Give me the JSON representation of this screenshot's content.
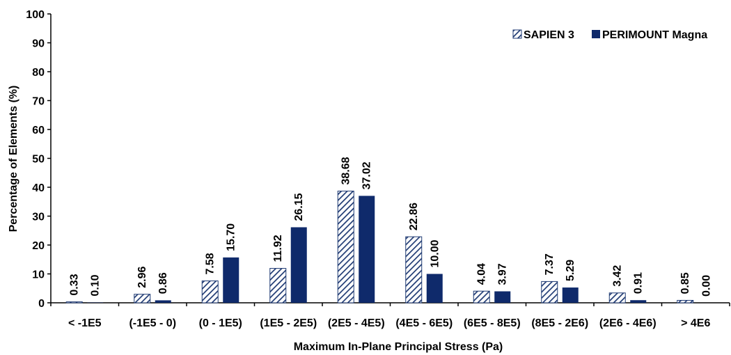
{
  "chart_data": {
    "type": "bar",
    "title": "",
    "xlabel": "Maximum In-Plane Principal Stress (Pa)",
    "ylabel": "Percentage of Elements (%)",
    "ylim": [
      0,
      100
    ],
    "yticks": [
      0,
      10,
      20,
      30,
      40,
      50,
      60,
      70,
      80,
      90,
      100
    ],
    "grid": false,
    "legend_position": "top-right",
    "categories": [
      "< -1E5",
      "(-1E5 - 0)",
      "(0 - 1E5)",
      "(1E5 - 2E5)",
      "(2E5 - 4E5)",
      "(4E5 - 6E5)",
      "(6E5 - 8E5)",
      "(8E5 - 2E6)",
      "(2E6 - 4E6)",
      "> 4E6"
    ],
    "series": [
      {
        "name": "SAPIEN 3",
        "pattern": "diagonal-hatch",
        "color": "#1f3a73",
        "values": [
          0.33,
          2.96,
          7.58,
          11.92,
          38.68,
          22.86,
          4.04,
          7.37,
          3.42,
          0.85
        ],
        "labels": [
          "0.33",
          "2.96",
          "7.58",
          "11.92",
          "38.68",
          "22.86",
          "4.04",
          "7.37",
          "3.42",
          "0.85"
        ]
      },
      {
        "name": "PERIMOUNT Magna",
        "pattern": "solid",
        "color": "#0f2a6b",
        "values": [
          0.1,
          0.86,
          15.7,
          26.15,
          37.02,
          10.0,
          3.97,
          5.29,
          0.91,
          0.0
        ],
        "labels": [
          "0.10",
          "0.86",
          "15.70",
          "26.15",
          "37.02",
          "10.00",
          "3.97",
          "5.29",
          "0.91",
          "0.00"
        ]
      }
    ]
  }
}
